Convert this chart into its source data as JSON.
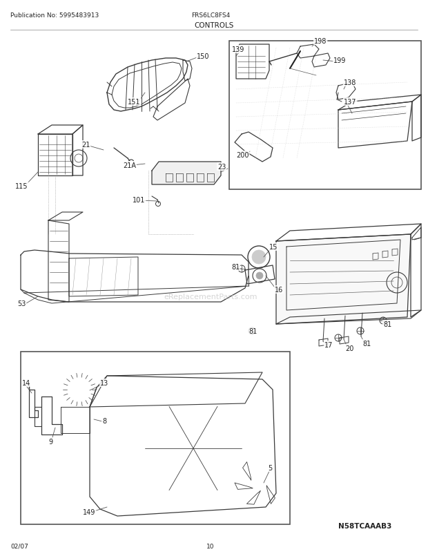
{
  "title": "CONTROLS",
  "pub_no": "Publication No: 5995483913",
  "model": "FRS6LC8FS4",
  "date": "02/07",
  "page": "10",
  "diagram_code": "N58TCAAAB3",
  "watermark": "eReplacementParts.com",
  "fig_width": 6.2,
  "fig_height": 8.03,
  "dpi": 100,
  "bg_color": "#ffffff",
  "line_color": "#3a3a3a",
  "text_color": "#222222",
  "header_line_color": "#999999"
}
